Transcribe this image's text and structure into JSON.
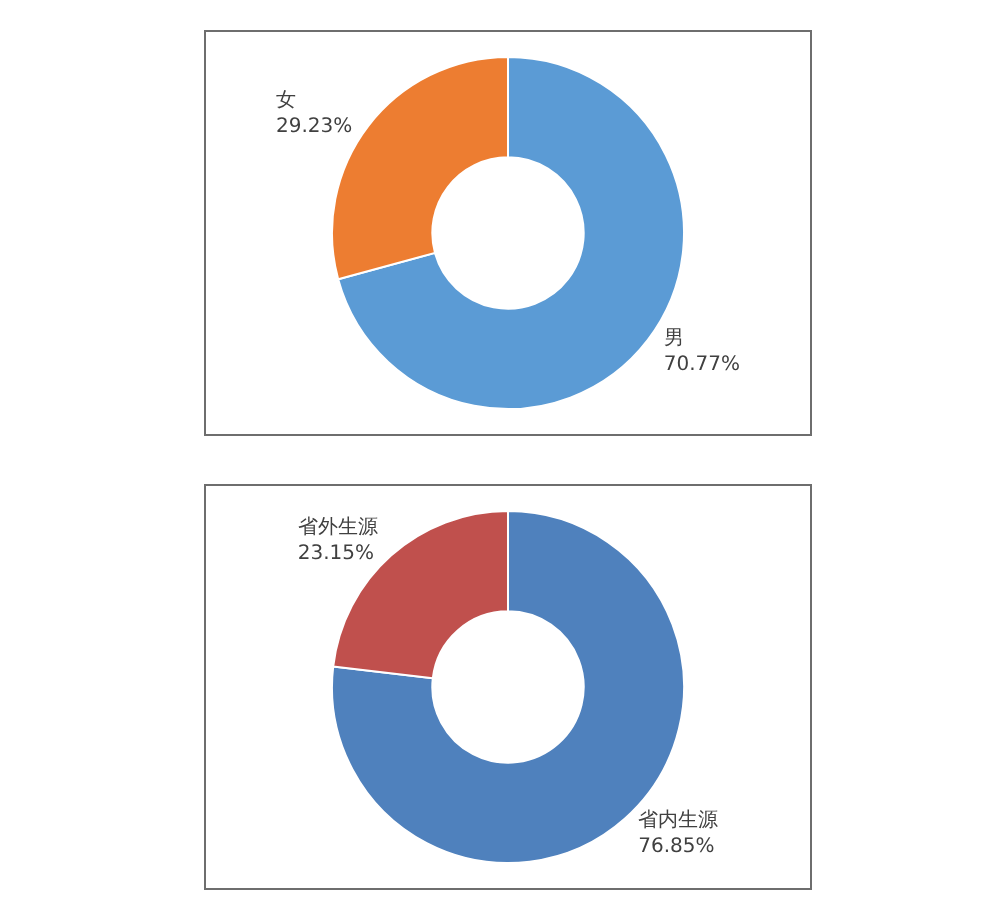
{
  "chart_data": [
    {
      "type": "donut",
      "categories": [
        "男",
        "女"
      ],
      "values": [
        70.77,
        29.23
      ],
      "colors": [
        "#5b9bd5",
        "#ed7d31"
      ],
      "value_labels": [
        "70.77%",
        "29.23%"
      ]
    },
    {
      "type": "donut",
      "categories": [
        "省内生源",
        "省外生源"
      ],
      "values": [
        76.85,
        23.15
      ],
      "colors": [
        "#4f81bd",
        "#c0504d"
      ],
      "value_labels": [
        "76.85%",
        "23.15%"
      ]
    }
  ]
}
